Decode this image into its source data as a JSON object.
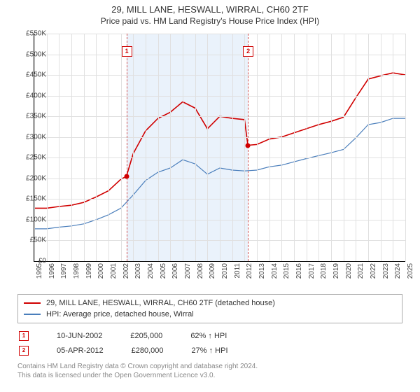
{
  "title": "29, MILL LANE, HESWALL, WIRRAL, CH60 2TF",
  "subtitle": "Price paid vs. HM Land Registry's House Price Index (HPI)",
  "chart": {
    "type": "line",
    "background_color": "#ffffff",
    "grid_color": "#e0e0e0",
    "shade_color": "#eaf2fb",
    "x_years": [
      "1995",
      "1996",
      "1997",
      "1998",
      "1999",
      "2000",
      "2001",
      "2002",
      "2003",
      "2004",
      "2005",
      "2006",
      "2007",
      "2008",
      "2009",
      "2010",
      "2011",
      "2012",
      "2013",
      "2014",
      "2015",
      "2016",
      "2017",
      "2018",
      "2019",
      "2020",
      "2021",
      "2022",
      "2023",
      "2024",
      "2025"
    ],
    "xlim": [
      1995,
      2025
    ],
    "y_ticks": [
      "£0",
      "£50K",
      "£100K",
      "£150K",
      "£200K",
      "£250K",
      "£300K",
      "£350K",
      "£400K",
      "£450K",
      "£500K",
      "£550K"
    ],
    "ylim": [
      0,
      550000
    ],
    "ytick_step": 50000,
    "series": [
      {
        "label": "29, MILL LANE, HESWALL, WIRRAL, CH60 2TF (detached house)",
        "color": "#d00000",
        "line_width": 1.6,
        "x": [
          1995,
          1996,
          1997,
          1998,
          1999,
          2000,
          2001,
          2002,
          2002.45,
          2003,
          2004,
          2005,
          2006,
          2007,
          2008,
          2009,
          2010,
          2011,
          2012,
          2012.27,
          2013,
          2014,
          2015,
          2016,
          2017,
          2018,
          2019,
          2020,
          2021,
          2022,
          2023,
          2024,
          2025
        ],
        "y": [
          128000,
          128000,
          132000,
          135000,
          142000,
          155000,
          170000,
          198000,
          205000,
          260000,
          315000,
          345000,
          360000,
          385000,
          370000,
          320000,
          350000,
          345000,
          342000,
          280000,
          282000,
          295000,
          300000,
          310000,
          320000,
          330000,
          338000,
          348000,
          395000,
          440000,
          448000,
          455000,
          450000
        ]
      },
      {
        "label": "HPI: Average price, detached house, Wirral",
        "color": "#4a7ebb",
        "line_width": 1.2,
        "x": [
          1995,
          1996,
          1997,
          1998,
          1999,
          2000,
          2001,
          2002,
          2003,
          2004,
          2005,
          2006,
          2007,
          2008,
          2009,
          2010,
          2011,
          2012,
          2013,
          2014,
          2015,
          2016,
          2017,
          2018,
          2019,
          2020,
          2021,
          2022,
          2023,
          2024,
          2025
        ],
        "y": [
          78000,
          78000,
          82000,
          85000,
          90000,
          100000,
          112000,
          128000,
          160000,
          195000,
          215000,
          225000,
          245000,
          235000,
          210000,
          225000,
          220000,
          218000,
          220000,
          228000,
          232000,
          240000,
          248000,
          255000,
          262000,
          270000,
          298000,
          330000,
          335000,
          345000,
          345000
        ]
      }
    ],
    "sale_markers": [
      {
        "num": "1",
        "year": 2002.45,
        "price": 205000
      },
      {
        "num": "2",
        "year": 2012.27,
        "price": 280000
      }
    ],
    "marker_color": "#d00000"
  },
  "legend": {
    "s1": "29, MILL LANE, HESWALL, WIRRAL, CH60 2TF (detached house)",
    "s2": "HPI: Average price, detached house, Wirral"
  },
  "sales": [
    {
      "num": "1",
      "date": "10-JUN-2002",
      "price": "£205,000",
      "pct": "62% ↑ HPI"
    },
    {
      "num": "2",
      "date": "05-APR-2012",
      "price": "£280,000",
      "pct": "27% ↑ HPI"
    }
  ],
  "attribution": {
    "line1": "Contains HM Land Registry data © Crown copyright and database right 2024.",
    "line2": "This data is licensed under the Open Government Licence v3.0."
  }
}
